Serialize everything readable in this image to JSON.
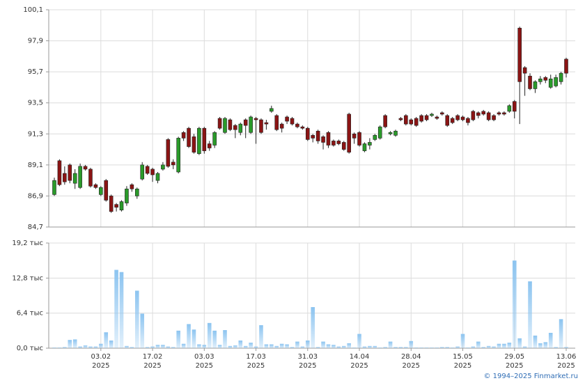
{
  "chart_data": [
    {
      "type": "candlestick",
      "up_color": "#2a9a2a",
      "down_color": "#8b1414",
      "ylim": [
        84.7,
        100.1
      ],
      "yticks": [
        {
          "value": 84.7,
          "label": "84,7"
        },
        {
          "value": 86.9,
          "label": "86,9"
        },
        {
          "value": 89.1,
          "label": "89,1"
        },
        {
          "value": 91.3,
          "label": "91,3"
        },
        {
          "value": 93.5,
          "label": "93,5"
        },
        {
          "value": 95.7,
          "label": "95,7"
        },
        {
          "value": 97.9,
          "label": "97,9"
        },
        {
          "value": 100.1,
          "label": "100,1"
        }
      ],
      "grid": true,
      "open": [
        87.0,
        89.4,
        88.5,
        89.1,
        87.8,
        87.5,
        89.0,
        88.8,
        87.7,
        87.0,
        88.0,
        86.9,
        86.3,
        85.9,
        86.4,
        87.7,
        86.9,
        88.1,
        89.0,
        88.8,
        88.0,
        88.8,
        90.9,
        89.3,
        88.6,
        91.4,
        91.7,
        91.1,
        89.9,
        91.7,
        90.6,
        90.5,
        92.4,
        91.4,
        92.3,
        91.9,
        91.4,
        92.3,
        91.4,
        92.4,
        92.3,
        92.1,
        92.9,
        92.6,
        92.0,
        92.5,
        92.4,
        92.0,
        91.8,
        91.7,
        91.2,
        91.5,
        91.1,
        91.4,
        90.8,
        90.8,
        90.7,
        92.7,
        91.3,
        91.4,
        90.1,
        90.5,
        90.9,
        91.0,
        92.6,
        91.3,
        91.2,
        92.4,
        92.6,
        92.3,
        92.4,
        92.6,
        92.6,
        92.6,
        92.5,
        92.8,
        92.6,
        92.4,
        92.6,
        92.5,
        92.4,
        92.9,
        92.8,
        92.9,
        92.8,
        92.6,
        92.8,
        92.8,
        92.9,
        93.6,
        98.8,
        96.0,
        95.4,
        94.5,
        95.0,
        95.3,
        94.6,
        94.7,
        95.0,
        96.6
      ],
      "close": [
        88.0,
        87.7,
        87.9,
        88.0,
        88.5,
        89.0,
        88.8,
        87.6,
        87.5,
        87.5,
        86.6,
        85.8,
        86.1,
        86.5,
        87.4,
        87.4,
        87.4,
        89.1,
        88.5,
        88.4,
        88.5,
        89.1,
        89.0,
        89.1,
        91.0,
        91.0,
        90.4,
        90.0,
        91.7,
        90.1,
        90.3,
        91.4,
        91.7,
        92.4,
        91.6,
        91.6,
        92.0,
        91.9,
        92.5,
        92.3,
        91.4,
        92.0,
        93.1,
        91.6,
        91.7,
        92.2,
        92.0,
        91.8,
        91.7,
        90.9,
        91.0,
        90.8,
        90.7,
        90.5,
        90.5,
        90.6,
        90.2,
        90.0,
        91.0,
        90.5,
        90.6,
        90.7,
        91.2,
        91.8,
        91.8,
        91.4,
        91.5,
        92.3,
        92.0,
        92.0,
        91.9,
        92.2,
        92.3,
        92.7,
        92.4,
        92.7,
        91.9,
        92.1,
        92.3,
        92.3,
        92.1,
        92.3,
        92.6,
        92.7,
        92.3,
        92.3,
        92.7,
        92.7,
        93.3,
        92.9,
        95.0,
        95.6,
        94.5,
        95.0,
        95.2,
        95.1,
        95.2,
        95.3,
        95.6,
        95.6
      ],
      "high": [
        88.2,
        89.5,
        89.0,
        89.2,
        88.8,
        89.2,
        89.1,
        88.9,
        87.8,
        87.6,
        88.1,
        87.0,
        86.4,
        86.6,
        87.6,
        87.8,
        87.5,
        89.3,
        89.1,
        88.9,
        88.6,
        89.3,
        91.0,
        89.5,
        91.1,
        91.5,
        91.8,
        91.3,
        91.8,
        91.8,
        90.8,
        91.5,
        92.5,
        92.5,
        92.4,
        92.0,
        92.1,
        92.4,
        92.6,
        92.5,
        92.4,
        92.3,
        93.3,
        92.7,
        92.1,
        92.6,
        92.5,
        92.1,
        91.9,
        91.8,
        91.3,
        91.6,
        91.2,
        91.5,
        90.9,
        90.9,
        90.8,
        92.8,
        91.4,
        91.5,
        90.7,
        91.0,
        91.3,
        91.9,
        92.7,
        91.5,
        91.6,
        92.5,
        92.7,
        92.4,
        92.5,
        92.7,
        92.7,
        92.8,
        92.6,
        92.9,
        92.7,
        92.5,
        92.7,
        92.6,
        92.5,
        93.0,
        92.9,
        93.0,
        92.9,
        92.7,
        92.9,
        92.9,
        93.4,
        93.7,
        98.9,
        96.1,
        95.6,
        95.1,
        95.4,
        95.4,
        95.5,
        95.5,
        95.7,
        96.7
      ],
      "low": [
        86.9,
        87.6,
        87.7,
        87.8,
        87.4,
        87.4,
        88.7,
        87.5,
        87.4,
        86.9,
        86.5,
        85.7,
        85.8,
        85.8,
        86.2,
        87.2,
        86.7,
        88.0,
        88.4,
        87.9,
        87.8,
        88.7,
        88.9,
        88.8,
        88.5,
        90.8,
        90.3,
        89.9,
        89.8,
        89.9,
        90.1,
        90.3,
        91.6,
        91.3,
        91.5,
        91.0,
        91.2,
        91.0,
        91.3,
        90.6,
        91.3,
        91.6,
        92.8,
        91.5,
        91.4,
        92.0,
        91.9,
        91.7,
        91.6,
        90.8,
        90.7,
        90.6,
        90.2,
        90.3,
        90.4,
        90.5,
        90.1,
        89.9,
        90.6,
        90.4,
        90.0,
        90.2,
        90.8,
        90.9,
        91.7,
        91.2,
        91.1,
        92.2,
        91.9,
        91.9,
        91.8,
        92.1,
        92.2,
        92.5,
        92.3,
        92.6,
        91.8,
        92.0,
        92.2,
        92.2,
        91.9,
        92.2,
        92.4,
        92.6,
        92.2,
        92.2,
        92.6,
        92.6,
        92.8,
        92.4,
        92.0,
        94.0,
        94.4,
        94.2,
        94.8,
        94.9,
        94.5,
        94.6,
        94.8,
        95.3
      ]
    },
    {
      "type": "bar",
      "color": "#8cc4f0",
      "ylim": [
        0,
        19.2
      ],
      "yticks": [
        {
          "value": 0,
          "label": "0,0 тыс"
        },
        {
          "value": 6.4,
          "label": "6,4 тыс"
        },
        {
          "value": 12.8,
          "label": "12,8 тыс"
        },
        {
          "value": 19.2,
          "label": "19,2 тыс"
        }
      ],
      "grid": true,
      "categories": [
        null,
        null,
        null,
        null,
        null,
        null,
        null,
        null,
        null,
        "03.02\n2025",
        null,
        null,
        null,
        null,
        null,
        null,
        null,
        null,
        null,
        "17.02\n2025",
        null,
        null,
        null,
        null,
        null,
        null,
        null,
        null,
        null,
        "03.03\n2025",
        null,
        null,
        null,
        null,
        null,
        null,
        null,
        null,
        null,
        "17.03\n2025",
        null,
        null,
        null,
        null,
        null,
        null,
        null,
        null,
        null,
        "31.03\n2025",
        null,
        null,
        null,
        null,
        null,
        null,
        null,
        null,
        null,
        "14.04\n2025",
        null,
        null,
        null,
        null,
        null,
        null,
        null,
        null,
        null,
        "28.04\n2025",
        null,
        null,
        null,
        null,
        null,
        null,
        null,
        null,
        null,
        "15.05\n2025",
        null,
        null,
        null,
        null,
        null,
        null,
        null,
        null,
        null,
        "29.05\n2025",
        null,
        null,
        null,
        null,
        null,
        null,
        null,
        null,
        null,
        "13.06\n2025"
      ],
      "values": [
        0.1,
        0.1,
        0.2,
        1.5,
        1.6,
        0.3,
        0.5,
        0.3,
        0.3,
        0.8,
        2.9,
        1.4,
        14.3,
        13.9,
        0.4,
        0.2,
        10.5,
        6.3,
        0.2,
        0.3,
        0.6,
        0.6,
        0.3,
        0.2,
        3.2,
        0.8,
        4.4,
        3.4,
        0.7,
        0.6,
        4.6,
        3.2,
        0.6,
        3.3,
        0.4,
        0.5,
        1.4,
        0.4,
        1.0,
        0.3,
        4.2,
        0.7,
        0.7,
        0.4,
        0.8,
        0.7,
        0.2,
        1.2,
        0.3,
        1.4,
        7.5,
        0.2,
        1.2,
        0.7,
        0.6,
        0.3,
        0.4,
        0.9,
        0.1,
        2.6,
        0.3,
        0.4,
        0.4,
        0.1,
        0.2,
        1.2,
        0.2,
        0.2,
        0.2,
        1.3,
        0.1,
        0.1,
        0.1,
        0.1,
        0.1,
        0.2,
        0.2,
        0.1,
        0.3,
        2.6,
        0.1,
        0.3,
        1.2,
        0.2,
        0.4,
        0.3,
        0.8,
        0.8,
        1.0,
        16.0,
        1.8,
        0.3,
        12.2,
        2.3,
        0.9,
        1.1,
        2.8,
        0.2,
        5.3,
        0.2
      ]
    }
  ],
  "footer": "© 1994–2025 Finmarket.ru"
}
